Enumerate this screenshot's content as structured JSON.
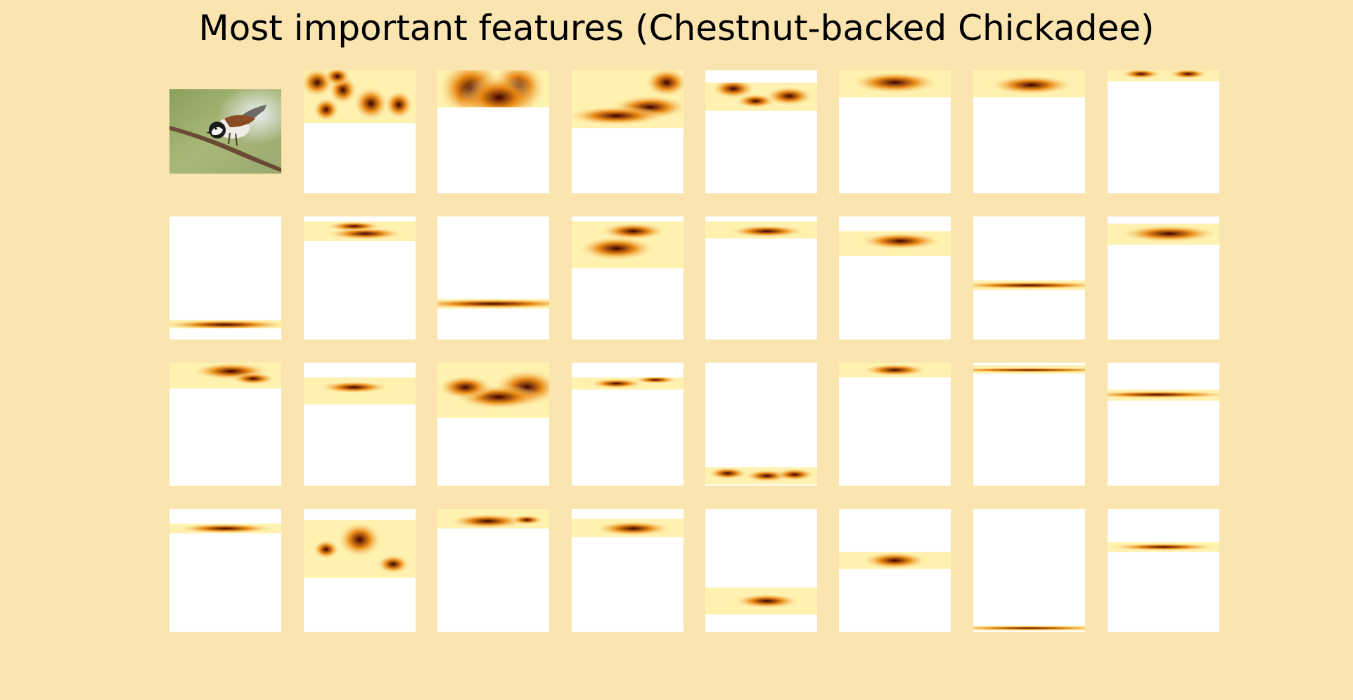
{
  "title": "Most important features (Chestnut-backed Chickadee)",
  "colors": {
    "background": "#fae5b1",
    "tile": "#ffffff",
    "heat_low": "#fff2b0",
    "heat_mid": "#e8850f",
    "heat_high": "#3c0000"
  },
  "image": {
    "subject": "chestnut-backed chickadee perched on branch"
  },
  "feature_maps": [
    {
      "band": [
        0.0,
        0.43
      ],
      "blobs": [
        [
          0.12,
          0.1,
          0.15,
          0.12
        ],
        [
          0.35,
          0.16,
          0.13,
          0.12
        ],
        [
          0.6,
          0.27,
          0.16,
          0.14
        ],
        [
          0.85,
          0.28,
          0.13,
          0.12
        ],
        [
          0.3,
          0.05,
          0.12,
          0.08
        ],
        [
          0.2,
          0.32,
          0.12,
          0.1
        ]
      ]
    },
    {
      "band": [
        0.0,
        0.3
      ],
      "blobs": [
        [
          0.3,
          0.15,
          0.3,
          0.24
        ],
        [
          0.72,
          0.14,
          0.25,
          0.22
        ],
        [
          0.55,
          0.22,
          0.35,
          0.18
        ]
      ]
    },
    {
      "band": [
        0.0,
        0.47
      ],
      "blobs": [
        [
          0.85,
          0.1,
          0.2,
          0.12
        ],
        [
          0.7,
          0.3,
          0.35,
          0.1
        ],
        [
          0.4,
          0.37,
          0.45,
          0.08
        ]
      ]
    },
    {
      "band": [
        0.1,
        0.33
      ],
      "blobs": [
        [
          0.25,
          0.15,
          0.2,
          0.08
        ],
        [
          0.75,
          0.21,
          0.22,
          0.08
        ],
        [
          0.45,
          0.25,
          0.18,
          0.06
        ]
      ]
    },
    {
      "band": [
        0.0,
        0.22
      ],
      "blobs": [
        [
          0.5,
          0.1,
          0.4,
          0.09
        ]
      ]
    },
    {
      "band": [
        0.0,
        0.22
      ],
      "blobs": [
        [
          0.52,
          0.12,
          0.38,
          0.08
        ]
      ]
    },
    {
      "band": [
        0.0,
        0.09
      ],
      "blobs": [
        [
          0.3,
          0.03,
          0.18,
          0.04
        ],
        [
          0.72,
          0.03,
          0.18,
          0.04
        ]
      ]
    },
    {
      "band": [
        0.84,
        0.91
      ],
      "blobs": [
        [
          0.5,
          0.88,
          0.6,
          0.04
        ]
      ]
    },
    {
      "band": [
        0.04,
        0.2
      ],
      "blobs": [
        [
          0.55,
          0.14,
          0.35,
          0.05
        ],
        [
          0.45,
          0.08,
          0.25,
          0.04
        ]
      ]
    },
    {
      "band": [
        0.67,
        0.75
      ],
      "blobs": [
        [
          0.5,
          0.71,
          0.8,
          0.04
        ]
      ]
    },
    {
      "band": [
        0.04,
        0.42
      ],
      "blobs": [
        [
          0.4,
          0.26,
          0.35,
          0.1
        ],
        [
          0.55,
          0.12,
          0.3,
          0.07
        ]
      ]
    },
    {
      "band": [
        0.04,
        0.18
      ],
      "blobs": [
        [
          0.55,
          0.12,
          0.35,
          0.05
        ]
      ]
    },
    {
      "band": [
        0.12,
        0.32
      ],
      "blobs": [
        [
          0.55,
          0.2,
          0.38,
          0.07
        ]
      ]
    },
    {
      "band": [
        0.52,
        0.6
      ],
      "blobs": [
        [
          0.5,
          0.56,
          0.75,
          0.03
        ]
      ]
    },
    {
      "band": [
        0.06,
        0.23
      ],
      "blobs": [
        [
          0.55,
          0.14,
          0.45,
          0.07
        ]
      ]
    },
    {
      "band": [
        0.0,
        0.21
      ],
      "blobs": [
        [
          0.55,
          0.07,
          0.35,
          0.07
        ],
        [
          0.75,
          0.13,
          0.2,
          0.05
        ]
      ]
    },
    {
      "band": [
        0.12,
        0.34
      ],
      "blobs": [
        [
          0.45,
          0.2,
          0.32,
          0.05
        ]
      ]
    },
    {
      "band": [
        0.0,
        0.45
      ],
      "blobs": [
        [
          0.8,
          0.2,
          0.3,
          0.15
        ],
        [
          0.55,
          0.28,
          0.4,
          0.1
        ],
        [
          0.25,
          0.2,
          0.25,
          0.1
        ]
      ]
    },
    {
      "band": [
        0.12,
        0.22
      ],
      "blobs": [
        [
          0.4,
          0.17,
          0.25,
          0.04
        ],
        [
          0.75,
          0.14,
          0.2,
          0.03
        ]
      ]
    },
    {
      "band": [
        0.85,
        0.99
      ],
      "blobs": [
        [
          0.2,
          0.9,
          0.18,
          0.05
        ],
        [
          0.55,
          0.92,
          0.2,
          0.05
        ],
        [
          0.8,
          0.91,
          0.18,
          0.05
        ]
      ]
    },
    {
      "band": [
        0.0,
        0.12
      ],
      "blobs": [
        [
          0.5,
          0.06,
          0.3,
          0.05
        ]
      ]
    },
    {
      "band": [
        0.02,
        0.09
      ],
      "blobs": [
        [
          0.5,
          0.06,
          0.9,
          0.02
        ]
      ]
    },
    {
      "band": [
        0.22,
        0.31
      ],
      "blobs": [
        [
          0.45,
          0.26,
          0.7,
          0.03
        ]
      ]
    },
    {
      "band": [
        0.12,
        0.2
      ],
      "blobs": [
        [
          0.5,
          0.16,
          0.45,
          0.04
        ]
      ]
    },
    {
      "band": [
        0.09,
        0.56
      ],
      "blobs": [
        [
          0.2,
          0.33,
          0.12,
          0.08
        ],
        [
          0.5,
          0.25,
          0.2,
          0.15
        ],
        [
          0.8,
          0.45,
          0.15,
          0.08
        ]
      ]
    },
    {
      "band": [
        0.0,
        0.16
      ],
      "blobs": [
        [
          0.45,
          0.1,
          0.35,
          0.06
        ],
        [
          0.8,
          0.09,
          0.15,
          0.04
        ]
      ]
    },
    {
      "band": [
        0.08,
        0.23
      ],
      "blobs": [
        [
          0.55,
          0.16,
          0.35,
          0.06
        ]
      ]
    },
    {
      "band": [
        0.64,
        0.86
      ],
      "blobs": [
        [
          0.55,
          0.75,
          0.3,
          0.06
        ]
      ]
    },
    {
      "band": [
        0.35,
        0.49
      ],
      "blobs": [
        [
          0.5,
          0.42,
          0.3,
          0.07
        ]
      ]
    },
    {
      "band": [
        0.95,
        0.99
      ],
      "blobs": [
        [
          0.5,
          0.97,
          0.8,
          0.02
        ]
      ]
    },
    {
      "band": [
        0.27,
        0.35
      ],
      "blobs": [
        [
          0.5,
          0.31,
          0.5,
          0.03
        ]
      ]
    }
  ]
}
